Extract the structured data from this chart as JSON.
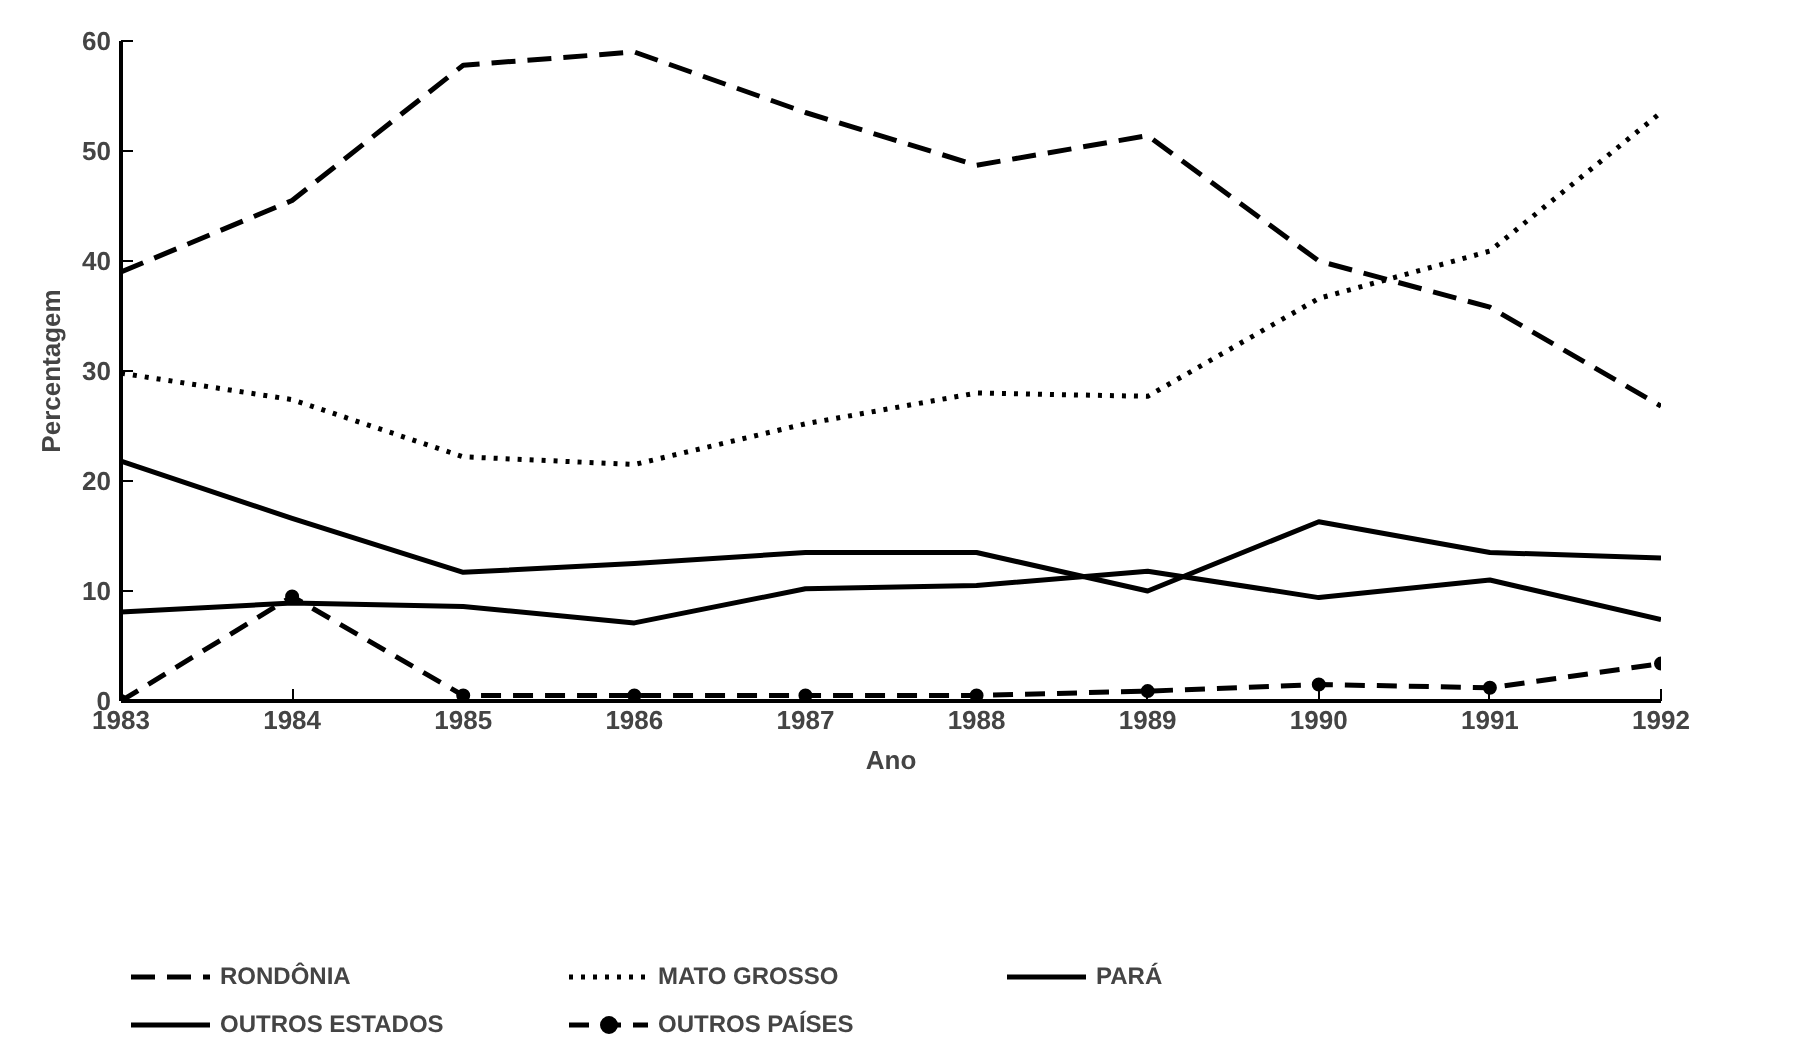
{
  "chart_data": {
    "type": "line",
    "xlabel": "Ano",
    "ylabel": "Percentagem",
    "x": [
      1983,
      1984,
      1985,
      1986,
      1987,
      1988,
      1989,
      1990,
      1991,
      1992
    ],
    "xlim": [
      1983,
      1992
    ],
    "xticks": [
      1983,
      1984,
      1985,
      1986,
      1987,
      1988,
      1989,
      1990,
      1991,
      1992
    ],
    "ylim": [
      0,
      60
    ],
    "yticks": [
      0,
      10,
      20,
      30,
      40,
      50,
      60
    ],
    "grid": false,
    "legend": "bottom",
    "series": [
      {
        "name": "RONDÔNIA",
        "color": "#000000",
        "line_style": "dashed",
        "values": [
          39,
          45.5,
          57.8,
          59,
          53.5,
          48.7,
          51.4,
          40,
          35.8,
          26.8
        ]
      },
      {
        "name": "MATO GROSSO",
        "color": "#000000",
        "line_style": "dotted",
        "values": [
          29.8,
          27.4,
          22.2,
          21.5,
          25.2,
          28,
          27.7,
          36.6,
          40.9,
          53.5
        ]
      },
      {
        "name": "PARÁ",
        "color": "#000000",
        "line_style": "solid",
        "values": [
          21.8,
          16.6,
          11.7,
          12.5,
          13.5,
          13.5,
          10,
          16.3,
          13.5,
          13
        ]
      },
      {
        "name": "OUTROS ESTADOS",
        "color": "#000000",
        "line_style": "solid",
        "values": [
          8.1,
          8.9,
          8.6,
          7.1,
          10.2,
          10.5,
          11.8,
          9.4,
          11,
          7.4
        ]
      },
      {
        "name": "OUTROS PAÍSES",
        "color": "#000000",
        "line_style": "dashed",
        "marker": "circle",
        "values": [
          0,
          9.5,
          0.5,
          0.5,
          0.5,
          0.5,
          0.9,
          1.5,
          1.2,
          3.4
        ]
      }
    ]
  }
}
